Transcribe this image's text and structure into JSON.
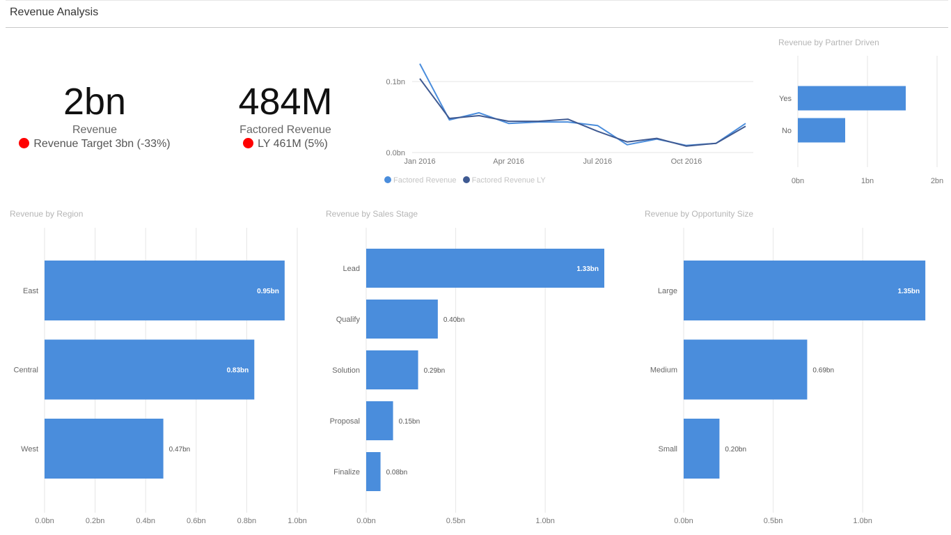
{
  "page": {
    "title": "Revenue Analysis"
  },
  "kpis": [
    {
      "value": "2bn",
      "label": "Revenue",
      "sub": "Revenue Target 3bn (-33%)",
      "status_color": "#ff0000"
    },
    {
      "value": "484M",
      "label": "Factored Revenue",
      "sub": "LY 461M (5%)",
      "status_color": "#ff0000"
    }
  ],
  "colors": {
    "bar": "#4a8ddc",
    "series1": "#4a8ddc",
    "series2": "#3f5a92",
    "grid": "#e6e6e6",
    "axis_text": "#777777"
  },
  "chart_data": [
    {
      "id": "trend",
      "type": "line",
      "title": "",
      "x": [
        "Jan 2016",
        "Feb 2016",
        "Mar 2016",
        "Apr 2016",
        "May 2016",
        "Jun 2016",
        "Jul 2016",
        "Aug 2016",
        "Sep 2016",
        "Oct 2016",
        "Nov 2016",
        "Dec 2016"
      ],
      "x_tick_labels": [
        "Jan 2016",
        "Apr 2016",
        "Jul 2016",
        "Oct 2016"
      ],
      "series": [
        {
          "name": "Factored Revenue",
          "values": [
            0.125,
            0.046,
            0.056,
            0.041,
            0.043,
            0.043,
            0.038,
            0.011,
            0.019,
            0.01,
            0.013,
            0.041
          ]
        },
        {
          "name": "Factored Revenue LY",
          "values": [
            0.104,
            0.048,
            0.052,
            0.044,
            0.044,
            0.047,
            0.03,
            0.015,
            0.02,
            0.009,
            0.013,
            0.037
          ]
        }
      ],
      "ylim": [
        0,
        0.1
      ],
      "y_ticks": [
        0,
        0.1
      ],
      "y_tick_labels": [
        "0.0bn",
        "0.1bn"
      ],
      "legend": "bottom-left"
    },
    {
      "id": "partner",
      "type": "bar",
      "orientation": "horizontal",
      "title": "Revenue by Partner Driven",
      "categories": [
        "Yes",
        "No"
      ],
      "values": [
        1.55,
        0.68
      ],
      "xlim": [
        0,
        2
      ],
      "x_ticks": [
        0,
        1,
        2
      ],
      "x_tick_labels": [
        "0bn",
        "1bn",
        "2bn"
      ]
    },
    {
      "id": "region",
      "type": "bar",
      "orientation": "horizontal",
      "title": "Revenue by Region",
      "categories": [
        "East",
        "Central",
        "West"
      ],
      "values": [
        0.95,
        0.83,
        0.47
      ],
      "data_labels": [
        "0.95bn",
        "0.83bn",
        "0.47bn"
      ],
      "xlim": [
        0,
        1.0
      ],
      "x_ticks": [
        0,
        0.2,
        0.4,
        0.6,
        0.8,
        1.0
      ],
      "x_tick_labels": [
        "0.0bn",
        "0.2bn",
        "0.4bn",
        "0.6bn",
        "0.8bn",
        "1.0bn"
      ]
    },
    {
      "id": "stage",
      "type": "bar",
      "orientation": "horizontal",
      "title": "Revenue by Sales Stage",
      "categories": [
        "Lead",
        "Qualify",
        "Solution",
        "Proposal",
        "Finalize"
      ],
      "values": [
        1.33,
        0.4,
        0.29,
        0.15,
        0.08
      ],
      "data_labels": [
        "1.33bn",
        "0.40bn",
        "0.29bn",
        "0.15bn",
        "0.08bn"
      ],
      "xlim": [
        0,
        1.4
      ],
      "x_ticks": [
        0,
        0.5,
        1.0
      ],
      "x_tick_labels": [
        "0.0bn",
        "0.5bn",
        "1.0bn"
      ]
    },
    {
      "id": "size",
      "type": "bar",
      "orientation": "horizontal",
      "title": "Revenue by Opportunity Size",
      "categories": [
        "Large",
        "Medium",
        "Small"
      ],
      "values": [
        1.35,
        0.69,
        0.2
      ],
      "data_labels": [
        "1.35bn",
        "0.69bn",
        "0.20bn"
      ],
      "xlim": [
        0,
        1.4
      ],
      "x_ticks": [
        0,
        0.5,
        1.0
      ],
      "x_tick_labels": [
        "0.0bn",
        "0.5bn",
        "1.0bn"
      ]
    }
  ]
}
